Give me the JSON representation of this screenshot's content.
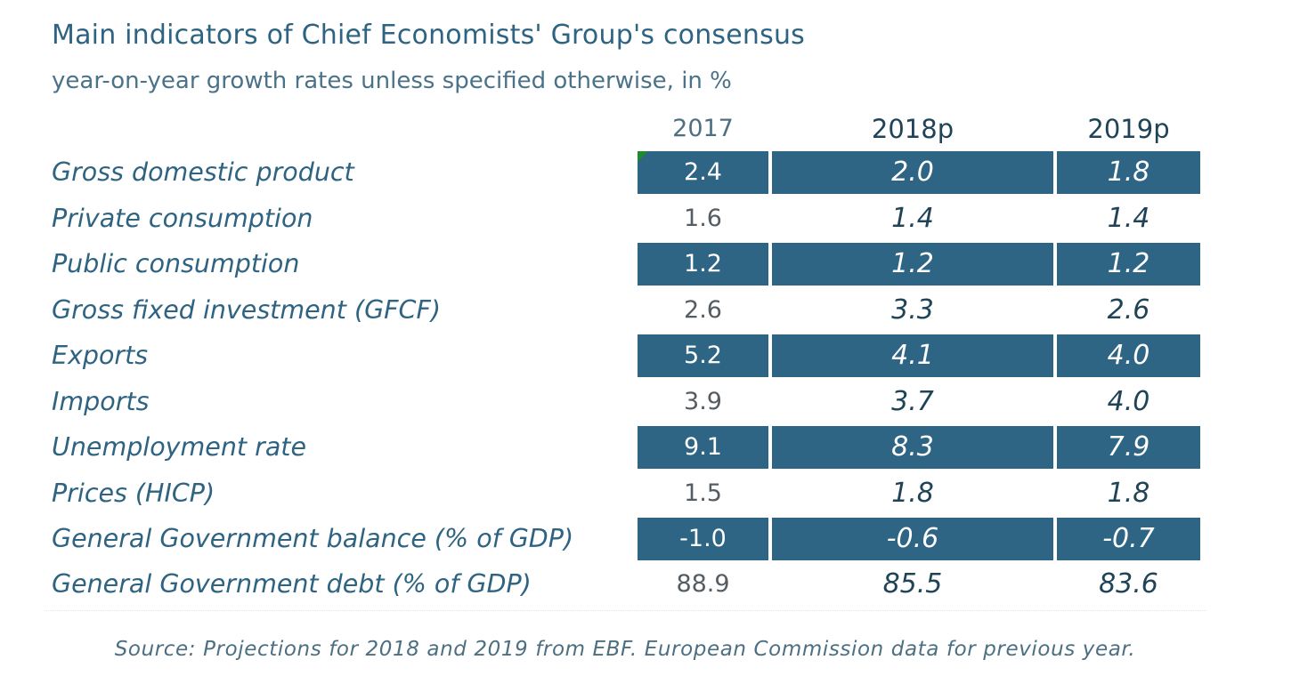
{
  "title": "Main indicators of Chief Economists' Group's consensus",
  "subtitle": "year-on-year growth rates unless specified otherwise, in %",
  "headers": [
    "2017",
    "2018p",
    "2019p"
  ],
  "rows": [
    {
      "label": "Gross domestic product",
      "v2017": "2.4",
      "v2018": "2.0",
      "v2019": "1.8"
    },
    {
      "label": "Private consumption",
      "v2017": "1.6",
      "v2018": "1.4",
      "v2019": "1.4"
    },
    {
      "label": "Public consumption",
      "v2017": "1.2",
      "v2018": "1.2",
      "v2019": "1.2"
    },
    {
      "label": "Gross fixed investment (GFCF)",
      "v2017": "2.6",
      "v2018": "3.3",
      "v2019": "2.6"
    },
    {
      "label": "Exports",
      "v2017": "5.2",
      "v2018": "4.1",
      "v2019": "4.0"
    },
    {
      "label": "Imports",
      "v2017": "3.9",
      "v2018": "3.7",
      "v2019": "4.0"
    },
    {
      "label": "Unemployment rate",
      "v2017": "9.1",
      "v2018": "8.3",
      "v2019": "7.9"
    },
    {
      "label": "Prices (HICP)",
      "v2017": "1.5",
      "v2018": "1.8",
      "v2019": "1.8"
    },
    {
      "label": "General Government balance (% of GDP)",
      "v2017": "-1.0",
      "v2018": "-0.6",
      "v2019": "-0.7"
    },
    {
      "label": "General Government debt (% of GDP)",
      "v2017": "88.9",
      "v2018": "85.5",
      "v2019": "83.6"
    }
  ],
  "source": "Source: Projections for 2018 and 2019 from EBF. European Commission data for previous year.",
  "colors": {
    "band": "#2e6585",
    "title": "#2e6381",
    "corner_mark": "#1f8a2e"
  }
}
